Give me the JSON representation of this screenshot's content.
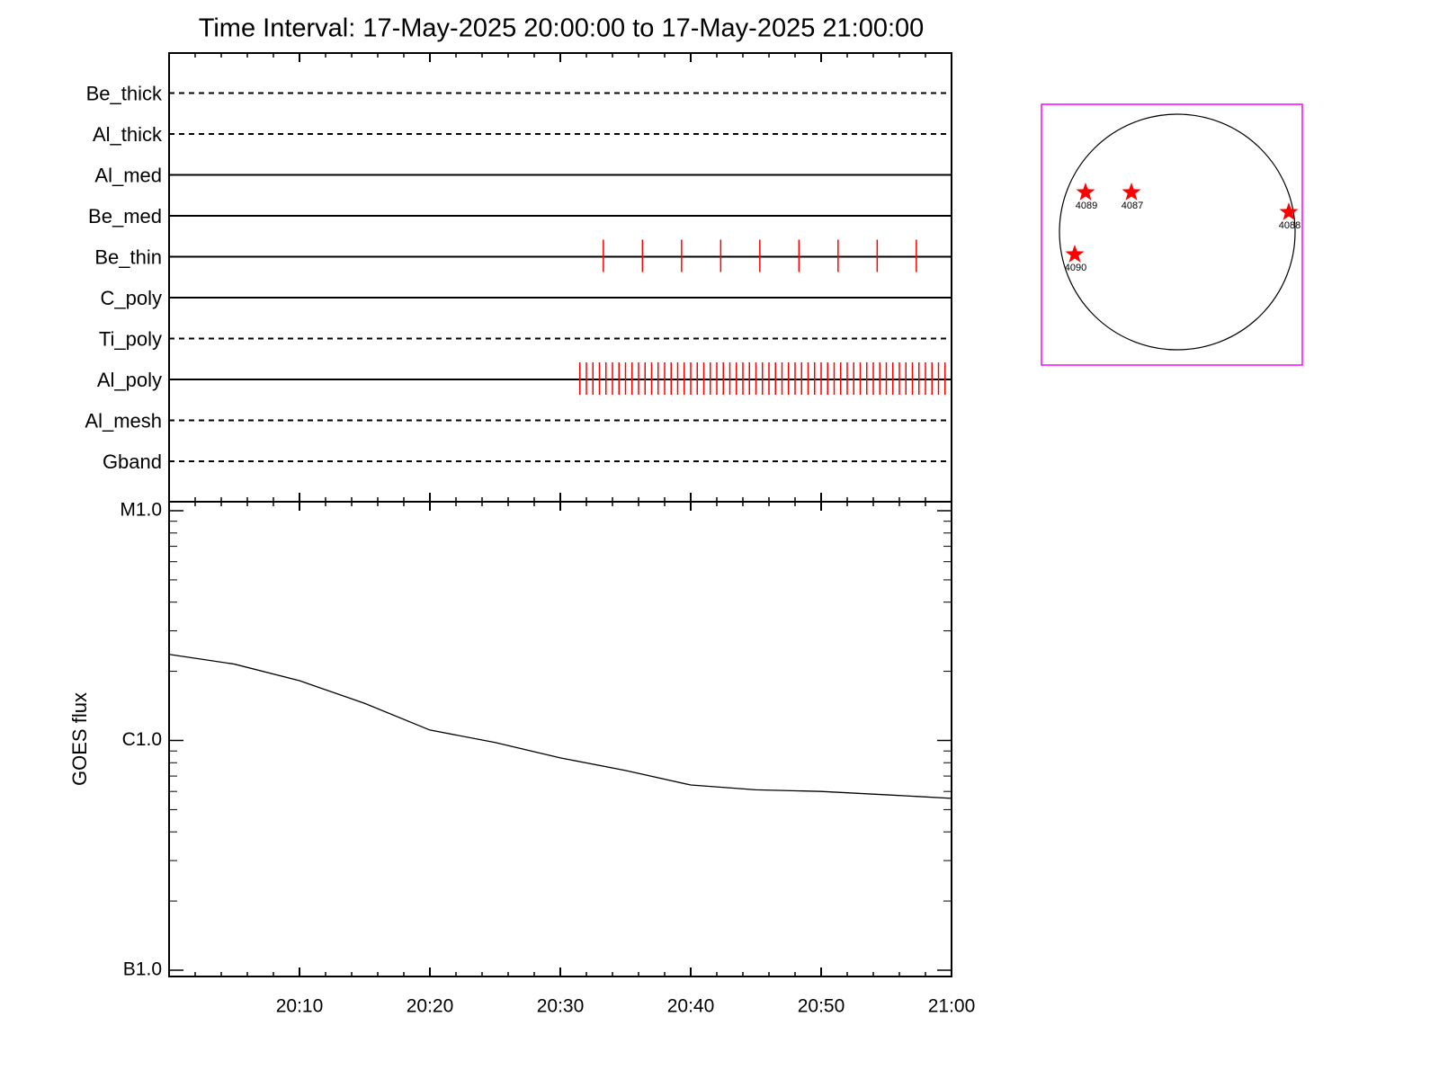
{
  "chart_data": [
    {
      "type": "timeline",
      "title": "Time Interval: 17-May-2025 20:00:00 to 17-May-2025 21:00:00",
      "xlim": [
        0,
        60
      ],
      "xticks": [
        0,
        10,
        20,
        30,
        40,
        50,
        60
      ],
      "event_color": "#ff0000",
      "rows": [
        {
          "name": "Be_thick",
          "style": "dashed",
          "events": []
        },
        {
          "name": "Al_thick",
          "style": "dashed",
          "events": []
        },
        {
          "name": "Al_med",
          "style": "solid",
          "events": []
        },
        {
          "name": "Be_med",
          "style": "solid",
          "events": []
        },
        {
          "name": "Be_thin",
          "style": "solid",
          "events": [
            33.3,
            36.3,
            39.3,
            42.3,
            45.3,
            48.3,
            51.3,
            54.3,
            57.3
          ]
        },
        {
          "name": "C_poly",
          "style": "solid",
          "events": []
        },
        {
          "name": "Ti_poly",
          "style": "dashed",
          "events": []
        },
        {
          "name": "Al_poly",
          "style": "solid",
          "events": [
            31.5,
            32.0,
            32.5,
            33.0,
            33.5,
            34.0,
            34.5,
            35.0,
            35.5,
            36.0,
            36.5,
            37.0,
            37.5,
            38.0,
            38.5,
            39.0,
            39.5,
            40.0,
            40.5,
            41.0,
            41.5,
            42.0,
            42.5,
            43.0,
            43.5,
            44.0,
            44.5,
            45.0,
            45.5,
            46.0,
            46.5,
            47.0,
            47.5,
            48.0,
            48.5,
            49.0,
            49.5,
            50.0,
            50.5,
            51.0,
            51.5,
            52.0,
            52.5,
            53.0,
            53.5,
            54.0,
            54.5,
            55.0,
            55.5,
            56.0,
            56.5,
            57.0,
            57.5,
            58.0,
            58.5,
            59.0,
            59.5
          ]
        },
        {
          "name": "Al_mesh",
          "style": "dashed",
          "events": []
        },
        {
          "name": "Gband",
          "style": "dashed",
          "events": []
        }
      ]
    },
    {
      "type": "line",
      "ylabel": "GOES flux",
      "log_y": true,
      "color": "#000000",
      "xlim": [
        0,
        60
      ],
      "xticks": [
        {
          "value": 10,
          "label": "20:10"
        },
        {
          "value": 20,
          "label": "20:20"
        },
        {
          "value": 30,
          "label": "20:30"
        },
        {
          "value": 40,
          "label": "20:40"
        },
        {
          "value": 50,
          "label": "20:50"
        },
        {
          "value": 60,
          "label": "21:00"
        }
      ],
      "ylim": [
        1e-07,
        1e-05
      ],
      "yticks": [
        {
          "value": 1e-07,
          "label": "B1.0"
        },
        {
          "value": 1e-06,
          "label": "C1.0"
        },
        {
          "value": 1e-05,
          "label": "M1.0"
        }
      ],
      "x": [
        0,
        5,
        10,
        15,
        20,
        25,
        30,
        35,
        40,
        45,
        50,
        55,
        60
      ],
      "values": [
        2.37e-06,
        2.15e-06,
        1.82e-06,
        1.45e-06,
        1.11e-06,
        9.8e-07,
        8.4e-07,
        7.4e-07,
        6.4e-07,
        6.1e-07,
        6e-07,
        5.8e-07,
        5.6e-07
      ]
    }
  ],
  "sun_map": {
    "box_color": "#ff00ff",
    "star_color": "#ff0000",
    "regions": [
      {
        "label": "4089"
      },
      {
        "label": "4087"
      },
      {
        "label": "4088"
      },
      {
        "label": "4090"
      }
    ]
  }
}
